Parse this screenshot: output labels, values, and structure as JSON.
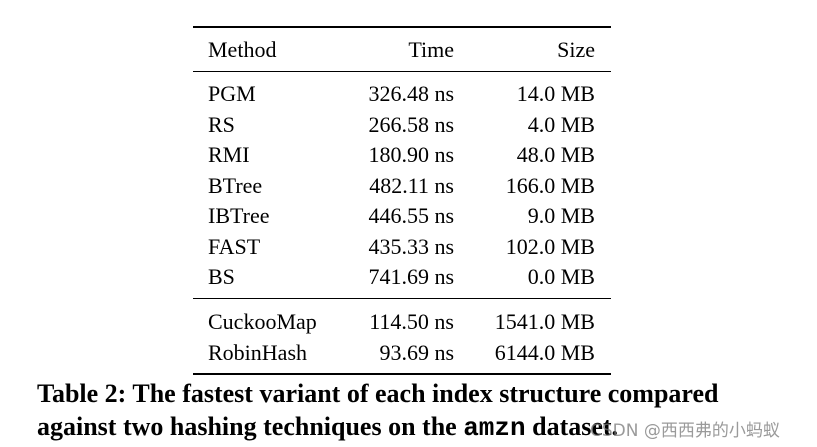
{
  "table": {
    "header": [
      "Method",
      "Time",
      "Size"
    ],
    "groups": [
      [
        [
          "PGM",
          "326.48 ns",
          "14.0 MB"
        ],
        [
          "RS",
          "266.58 ns",
          "4.0 MB"
        ],
        [
          "RMI",
          "180.90 ns",
          "48.0 MB"
        ],
        [
          "BTree",
          "482.11 ns",
          "166.0 MB"
        ],
        [
          "IBTree",
          "446.55 ns",
          "9.0 MB"
        ],
        [
          "FAST",
          "435.33 ns",
          "102.0 MB"
        ],
        [
          "BS",
          "741.69 ns",
          "0.0 MB"
        ]
      ],
      [
        [
          "CuckooMap",
          "114.50 ns",
          "1541.0 MB"
        ],
        [
          "RobinHash",
          "93.69 ns",
          "6144.0 MB"
        ]
      ]
    ]
  },
  "caption": {
    "line_1": "Table 2: The fastest variant of each index structure compared",
    "line_2_before": "against two hashing techniques on the",
    "line_2_code": "amzn",
    "line_2_after": "dataset."
  },
  "watermark": "CSDN @西西弗的小蚂蚁"
}
